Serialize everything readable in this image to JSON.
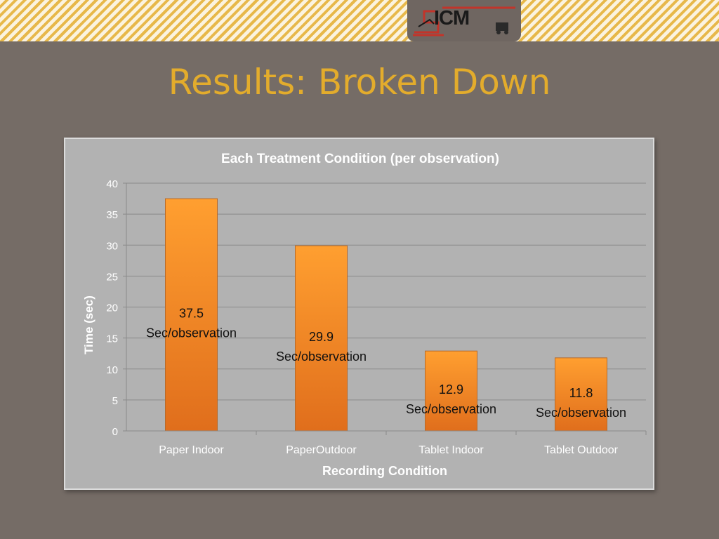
{
  "slide": {
    "title": "Results: Broken Down",
    "logo_text": "ICM",
    "accent_color": "#e3ac2c",
    "background_color": "#756c66"
  },
  "chart_data": {
    "type": "bar",
    "title": "Each Treatment Condition (per observation)",
    "xlabel": "Recording Condition",
    "ylabel": "Time (sec)",
    "categories": [
      "Paper Indoor",
      "PaperOutdoor",
      "Tablet Indoor",
      "Tablet Outdoor"
    ],
    "values": [
      37.5,
      29.9,
      12.9,
      11.8
    ],
    "data_labels": [
      [
        "37.5",
        "Sec/observation"
      ],
      [
        "29.9",
        "Sec/observation"
      ],
      [
        "12.9",
        "Sec/observation"
      ],
      [
        "11.8",
        "Sec/observation"
      ]
    ],
    "ylim": [
      0,
      40
    ],
    "yticks": [
      "0",
      "5",
      "10",
      "15",
      "20",
      "25",
      "30",
      "35",
      "40"
    ],
    "grid": true,
    "legend": "none",
    "bar_color": "#f39426",
    "grid_color": "#8a8a8a",
    "title_color": "#ffffff"
  }
}
